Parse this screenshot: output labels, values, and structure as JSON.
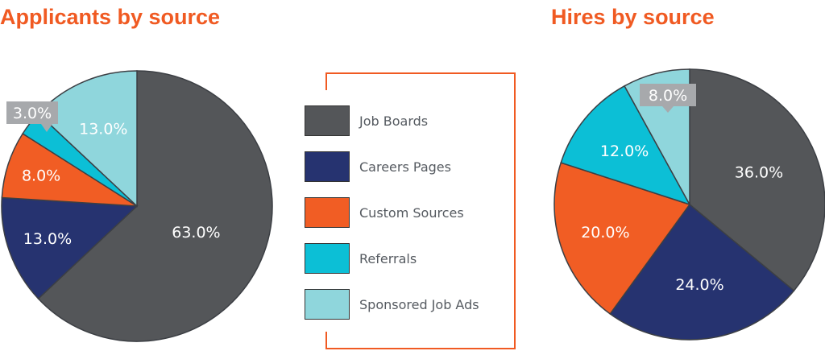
{
  "colors": {
    "title": "#f05a22",
    "frame": "#f05a22",
    "callout_bg": "#a7a9ac"
  },
  "legend": {
    "items": [
      {
        "label": "Job Boards",
        "color": "#545659"
      },
      {
        "label": "Careers Pages",
        "color": "#263370"
      },
      {
        "label": "Custom Sources",
        "color": "#f15d24"
      },
      {
        "label": "Referrals",
        "color": "#0cbfd6"
      },
      {
        "label": "Sponsored Job Ads",
        "color": "#8fd6dc"
      }
    ]
  },
  "chart_data": [
    {
      "type": "pie",
      "title": "Applicants by source",
      "start_angle_deg": 0,
      "slices": [
        {
          "label": "Job Boards",
          "value": 63.0,
          "display": "63.0%",
          "color": "#545659"
        },
        {
          "label": "Careers Pages",
          "value": 13.0,
          "display": "13.0%",
          "color": "#263370"
        },
        {
          "label": "Custom Sources",
          "value": 8.0,
          "display": "8.0%",
          "color": "#f15d24"
        },
        {
          "label": "Referrals",
          "value": 3.0,
          "display": "3.0%",
          "color": "#0cbfd6",
          "callout": true
        },
        {
          "label": "Sponsored Job Ads",
          "value": 13.0,
          "display": "13.0%",
          "color": "#8fd6dc"
        }
      ]
    },
    {
      "type": "pie",
      "title": "Hires by source",
      "start_angle_deg": 0,
      "slices": [
        {
          "label": "Job Boards",
          "value": 36.0,
          "display": "36.0%",
          "color": "#545659"
        },
        {
          "label": "Careers Pages",
          "value": 24.0,
          "display": "24.0%",
          "color": "#263370"
        },
        {
          "label": "Custom Sources",
          "value": 20.0,
          "display": "20.0%",
          "color": "#f15d24"
        },
        {
          "label": "Referrals",
          "value": 12.0,
          "display": "12.0%",
          "color": "#0cbfd6"
        },
        {
          "label": "Sponsored Job Ads",
          "value": 8.0,
          "display": "8.0%",
          "color": "#8fd6dc",
          "callout": true
        }
      ]
    }
  ]
}
